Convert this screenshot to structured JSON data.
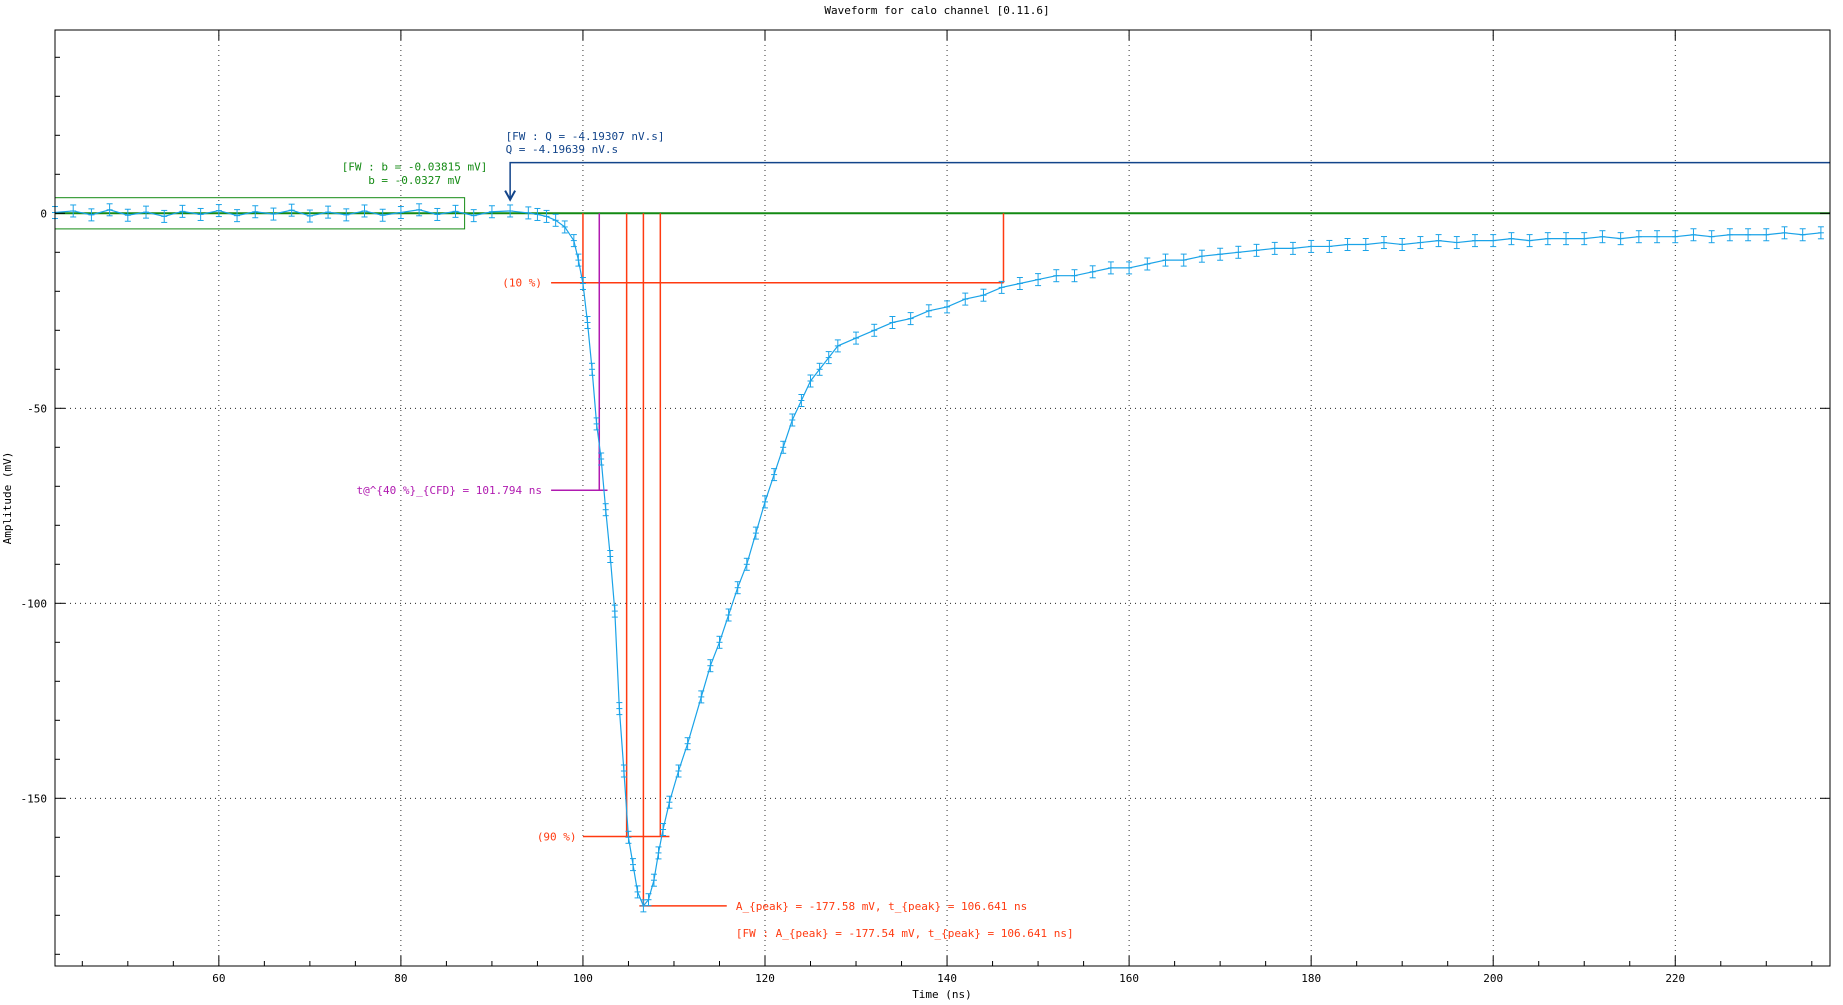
{
  "chart_data": {
    "type": "scatter",
    "title": "Waveform for calo channel [0.11.6]",
    "xlabel": "Time (ns)",
    "ylabel": "Amplitude (mV)",
    "xlim": [
      42,
      237
    ],
    "ylim": [
      -193,
      47
    ],
    "grid": true,
    "legend": "none",
    "xticks": [
      60,
      80,
      100,
      120,
      140,
      160,
      180,
      200,
      220
    ],
    "yticks": [
      0,
      -50,
      -100,
      -150
    ],
    "series": [
      {
        "name": "",
        "color": "#1aa3e8",
        "error_bars": true,
        "points": [
          [
            42,
            0.2
          ],
          [
            44,
            0.6
          ],
          [
            46,
            -0.4
          ],
          [
            48,
            0.9
          ],
          [
            50,
            -0.5
          ],
          [
            52,
            0.3
          ],
          [
            54,
            -0.8
          ],
          [
            56,
            0.5
          ],
          [
            58,
            -0.3
          ],
          [
            60,
            0.7
          ],
          [
            62,
            -0.6
          ],
          [
            64,
            0.4
          ],
          [
            66,
            -0.2
          ],
          [
            68,
            0.8
          ],
          [
            70,
            -0.7
          ],
          [
            72,
            0.3
          ],
          [
            74,
            -0.4
          ],
          [
            76,
            0.6
          ],
          [
            78,
            -0.5
          ],
          [
            80,
            0.2
          ],
          [
            82,
            0.9
          ],
          [
            84,
            -0.3
          ],
          [
            86,
            0.5
          ],
          [
            88,
            -0.6
          ],
          [
            90,
            0.4
          ],
          [
            92,
            0.6
          ],
          [
            94,
            0.1
          ],
          [
            95,
            -0.3
          ],
          [
            96,
            -0.8
          ],
          [
            97,
            -1.8
          ],
          [
            98,
            -3.5
          ],
          [
            99,
            -7
          ],
          [
            99.5,
            -12
          ],
          [
            100,
            -18
          ],
          [
            100.5,
            -28
          ],
          [
            101,
            -40
          ],
          [
            101.5,
            -54
          ],
          [
            102,
            -63
          ],
          [
            102.5,
            -76
          ],
          [
            103,
            -88
          ],
          [
            103.5,
            -102
          ],
          [
            104,
            -127
          ],
          [
            104.5,
            -143
          ],
          [
            105,
            -160
          ],
          [
            105.5,
            -167
          ],
          [
            106,
            -174
          ],
          [
            106.641,
            -177.58
          ],
          [
            107.2,
            -176
          ],
          [
            107.8,
            -171
          ],
          [
            108.3,
            -164
          ],
          [
            108.8,
            -158
          ],
          [
            109.5,
            -151
          ],
          [
            110.5,
            -143
          ],
          [
            111.5,
            -136
          ],
          [
            113,
            -124
          ],
          [
            114,
            -116
          ],
          [
            115,
            -110
          ],
          [
            116,
            -103
          ],
          [
            117,
            -96
          ],
          [
            118,
            -90
          ],
          [
            119,
            -82
          ],
          [
            120,
            -74
          ],
          [
            121,
            -67
          ],
          [
            122,
            -60
          ],
          [
            123,
            -53
          ],
          [
            124,
            -48
          ],
          [
            125,
            -43
          ],
          [
            126,
            -40
          ],
          [
            127,
            -37
          ],
          [
            128,
            -34
          ],
          [
            130,
            -32
          ],
          [
            132,
            -30
          ],
          [
            134,
            -28
          ],
          [
            136,
            -27
          ],
          [
            138,
            -25
          ],
          [
            140,
            -24
          ],
          [
            142,
            -22
          ],
          [
            144,
            -21
          ],
          [
            146,
            -19
          ],
          [
            148,
            -18
          ],
          [
            150,
            -17
          ],
          [
            152,
            -16
          ],
          [
            154,
            -16
          ],
          [
            156,
            -15
          ],
          [
            158,
            -14
          ],
          [
            160,
            -14
          ],
          [
            162,
            -13
          ],
          [
            164,
            -12
          ],
          [
            166,
            -12
          ],
          [
            168,
            -11
          ],
          [
            170,
            -10.5
          ],
          [
            172,
            -10
          ],
          [
            174,
            -9.5
          ],
          [
            176,
            -9
          ],
          [
            178,
            -9
          ],
          [
            180,
            -8.5
          ],
          [
            182,
            -8.5
          ],
          [
            184,
            -8
          ],
          [
            186,
            -8
          ],
          [
            188,
            -7.5
          ],
          [
            190,
            -8
          ],
          [
            192,
            -7.5
          ],
          [
            194,
            -7
          ],
          [
            196,
            -7.5
          ],
          [
            198,
            -7
          ],
          [
            200,
            -7
          ],
          [
            202,
            -6.5
          ],
          [
            204,
            -7
          ],
          [
            206,
            -6.5
          ],
          [
            208,
            -6.5
          ],
          [
            210,
            -6.5
          ],
          [
            212,
            -6
          ],
          [
            214,
            -6.5
          ],
          [
            216,
            -6
          ],
          [
            218,
            -6
          ],
          [
            220,
            -6
          ],
          [
            222,
            -5.5
          ],
          [
            224,
            -6
          ],
          [
            226,
            -5.5
          ],
          [
            228,
            -5.5
          ],
          [
            230,
            -5.5
          ],
          [
            232,
            -5
          ],
          [
            234,
            -5.5
          ],
          [
            236,
            -5
          ]
        ]
      }
    ],
    "baseline": {
      "value": 0,
      "window_x": [
        42,
        87
      ],
      "color": "#138a13",
      "label_line1": "[FW : b = -0.03815 mV]",
      "label_line2": "b = -0.0327 mV"
    },
    "charge": {
      "x_start": 92,
      "y_level": 13,
      "color": "#12448a",
      "label_line1": "[FW : Q = -4.19307 nV.s]",
      "label_line2": "Q = -4.19639 nV.s"
    },
    "threshold_10": {
      "y": -17.8,
      "x_rise": 100,
      "x_fall": 146.2,
      "label": "(10 %)",
      "color": "#ff3a10"
    },
    "threshold_90": {
      "y": -159.8,
      "x_rise": 104.8,
      "x_fall": 108.5,
      "label": "(90 %)",
      "color": "#ff3a10"
    },
    "cfd": {
      "x": 101.794,
      "y": -71,
      "label": "t@^{40 %}_{CFD} = 101.794 ns",
      "color": "#b01ab0"
    },
    "peak": {
      "x": 106.641,
      "y": -177.58,
      "label": "A_{peak} = -177.58 mV, t_{peak} = 106.641 ns",
      "fw_label": "[FW : A_{peak} = -177.54 mV, t_{peak} = 106.641 ns]",
      "color": "#ff3a10"
    }
  }
}
